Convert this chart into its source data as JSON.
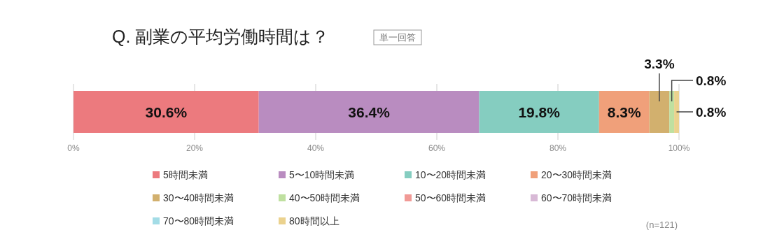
{
  "chart_data": {
    "type": "bar",
    "orientation": "horizontal",
    "stacked": true,
    "title": "Q. 副業の平均労働時間は？",
    "subtitle": "単一回答",
    "categories": [
      null
    ],
    "series": [
      {
        "name": "5時間未満",
        "color": "#ec7a7e",
        "values": [
          30.6
        ],
        "value_labels": [
          "30.6%"
        ]
      },
      {
        "name": "5〜10時間未満",
        "color": "#b98cc0",
        "values": [
          36.4
        ],
        "value_labels": [
          "36.4%"
        ]
      },
      {
        "name": "10〜20時間未満",
        "color": "#85cdc0",
        "values": [
          19.8
        ],
        "value_labels": [
          "19.8%"
        ]
      },
      {
        "name": "20〜30時間未満",
        "color": "#f0a07a",
        "values": [
          8.3
        ],
        "value_labels": [
          "8.3%"
        ]
      },
      {
        "name": "30〜40時間未満",
        "color": "#d2b06e",
        "values": [
          3.3
        ],
        "value_labels": [
          "3.3%"
        ]
      },
      {
        "name": "40〜50時間未満",
        "color": "#bfe0a0",
        "values": [
          0.8
        ],
        "value_labels": [
          "0.8%"
        ]
      },
      {
        "name": "50〜60時間未満",
        "color": "#f19a96",
        "values": [
          0
        ],
        "value_labels": [
          null
        ]
      },
      {
        "name": "60〜70時間未満",
        "color": "#d8b9d6",
        "values": [
          0
        ],
        "value_labels": [
          null
        ]
      },
      {
        "name": "70〜80時間未満",
        "color": "#a3dce6",
        "values": [
          0
        ],
        "value_labels": [
          null
        ]
      },
      {
        "name": "80時間以上",
        "color": "#ebd28e",
        "values": [
          0.8
        ],
        "value_labels": [
          "0.8%"
        ]
      }
    ],
    "xlim": [
      0,
      100
    ],
    "xticks": [
      {
        "value": 0,
        "label": "0%"
      },
      {
        "value": 20,
        "label": "20%"
      },
      {
        "value": 40,
        "label": "40%"
      },
      {
        "value": 60,
        "label": "60%"
      },
      {
        "value": 80,
        "label": "80%"
      },
      {
        "value": 100,
        "label": "100%"
      }
    ],
    "grid": "x",
    "legend": "bottom",
    "annotations": [
      "(n=121)"
    ]
  }
}
